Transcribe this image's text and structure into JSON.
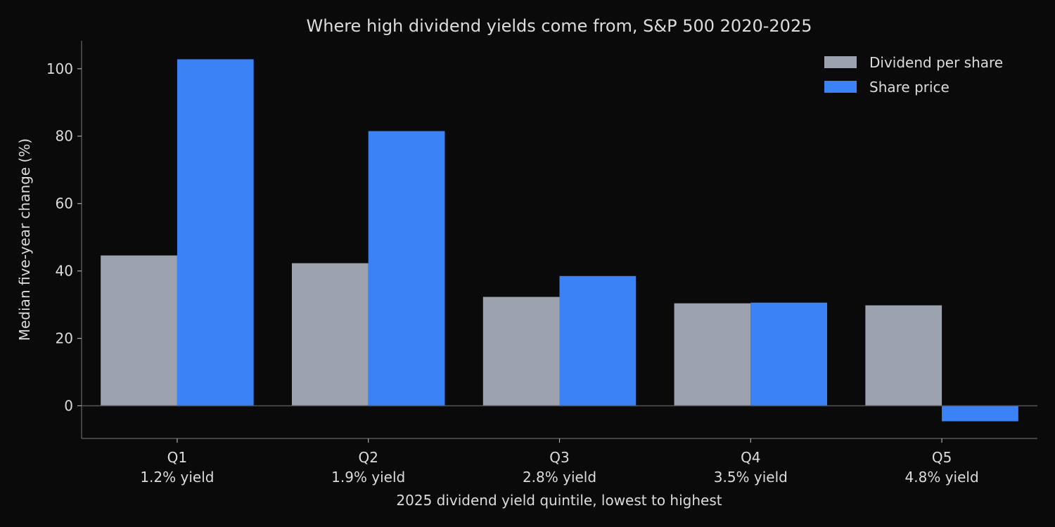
{
  "chart_data": {
    "type": "bar",
    "title": "Where high dividend yields come from, S&P 500 2020-2025",
    "xlabel": "2025 dividend yield quintile, lowest to highest",
    "ylabel": "Median five-year change (%)",
    "categories": [
      "Q1",
      "Q2",
      "Q3",
      "Q4",
      "Q5"
    ],
    "category_sublabels": [
      "1.2% yield",
      "1.9% yield",
      "2.8% yield",
      "3.5% yield",
      "4.8% yield"
    ],
    "series": [
      {
        "name": "Dividend per share",
        "color": "#9ca3af",
        "values": [
          44.6,
          42.3,
          32.3,
          30.4,
          29.8
        ]
      },
      {
        "name": "Share price",
        "color": "#3b82f6",
        "values": [
          102.8,
          81.5,
          38.5,
          30.6,
          -4.6
        ]
      }
    ],
    "ylim": [
      -9.7,
      108.3
    ],
    "yticks": [
      0,
      20,
      40,
      60,
      80,
      100
    ],
    "grid": false,
    "legend": "top-right",
    "zero_line": true
  }
}
